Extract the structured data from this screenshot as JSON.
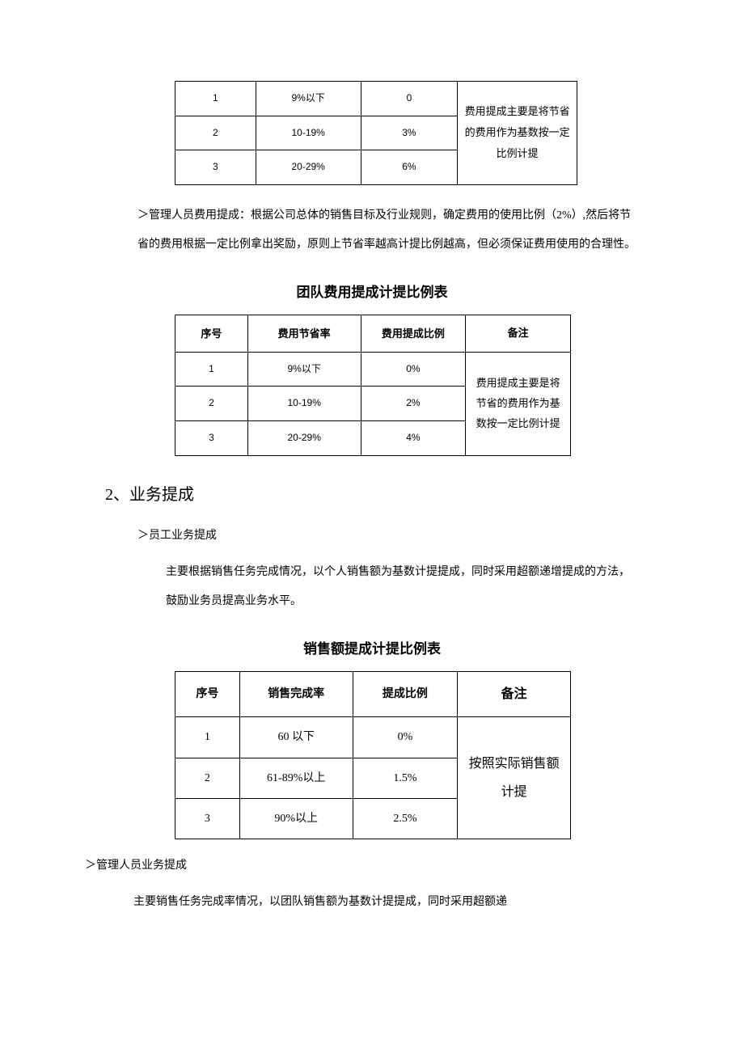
{
  "table1": {
    "rows": [
      {
        "seq": "1",
        "rate": "9%以下",
        "ratio": "0"
      },
      {
        "seq": "2",
        "rate": "10-19%",
        "ratio": "3%"
      },
      {
        "seq": "3",
        "rate": "20-29%",
        "ratio": "6%"
      }
    ],
    "remark": "费用提成主要是将节省的费用作为基数按一定比例计提"
  },
  "para1": "＞管理人员费用提成：根据公司总体的销售目标及行业规则，确定费用的使用比例（2%）,然后将节省的费用根据一定比例拿出奖励，原则上节省率越高计提比例越高，但必须保证费用使用的合理性。",
  "table2": {
    "title": "团队费用提成计提比例表",
    "headers": [
      "序号",
      "费用节省率",
      "费用提成比例",
      "备注"
    ],
    "rows": [
      {
        "seq": "1",
        "rate": "9%以下",
        "ratio": "0%"
      },
      {
        "seq": "2",
        "rate": "10-19%",
        "ratio": "2%"
      },
      {
        "seq": "3",
        "rate": "20-29%",
        "ratio": "4%"
      }
    ],
    "remark": "费用提成主要是将节省的费用作为基数按一定比例计提"
  },
  "section2": {
    "heading": "2、业务提成",
    "sub1_heading": "＞员工业务提成",
    "sub1_para": "主要根据销售任务完成情况，以个人销售额为基数计提提成，同时采用超额递增提成的方法，鼓励业务员提高业务水平。"
  },
  "table3": {
    "title": "销售额提成计提比例表",
    "headers": [
      "序号",
      "销售完成率",
      "提成比例",
      "备注"
    ],
    "rows": [
      {
        "seq": "1",
        "rate": "60 以下",
        "ratio": "0%"
      },
      {
        "seq": "2",
        "rate": "61-89%以上",
        "ratio": "1.5%"
      },
      {
        "seq": "3",
        "rate": "90%以上",
        "ratio": "2.5%"
      }
    ],
    "remark": "按照实际销售额计提"
  },
  "sub2_heading": "＞管理人员业务提成",
  "sub2_para": "主要销售任务完成率情况，以团队销售额为基数计提提成，同时采用超额递"
}
